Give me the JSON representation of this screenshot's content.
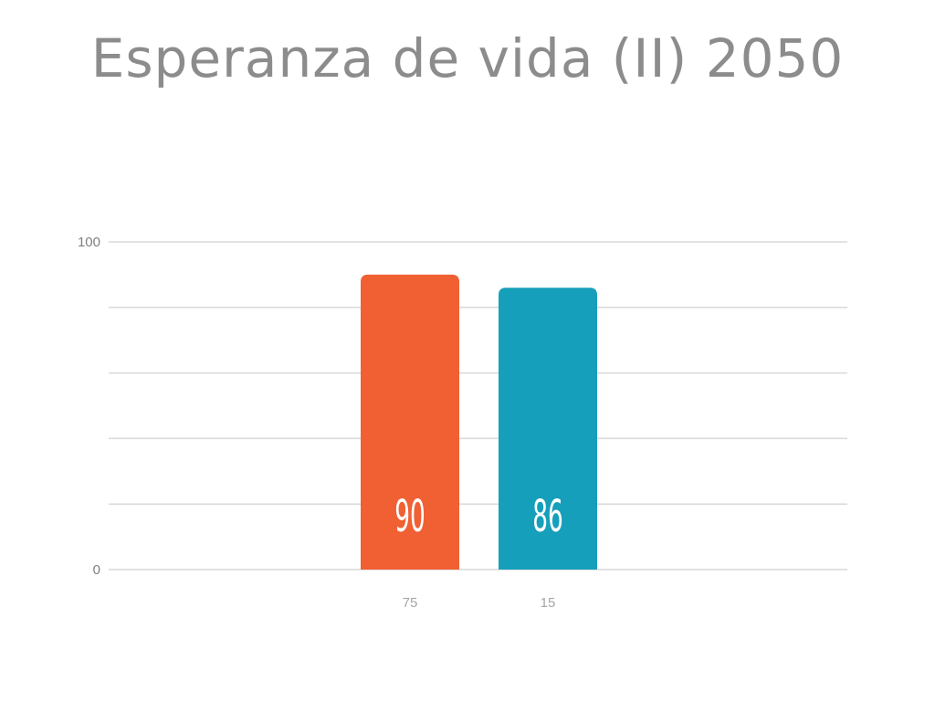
{
  "chart_data": {
    "type": "bar",
    "title": "Esperanza de vida (II) 2050",
    "categories": [
      "75",
      "15"
    ],
    "values": [
      90,
      86
    ],
    "colors": [
      "#f06033",
      "#169fba"
    ],
    "ylim": [
      0,
      100
    ],
    "yticks": [
      0,
      100
    ],
    "gridlines": [
      0,
      20,
      40,
      60,
      80,
      100
    ],
    "grid": true,
    "legend": "none",
    "data_labels": [
      "90",
      "86"
    ]
  }
}
